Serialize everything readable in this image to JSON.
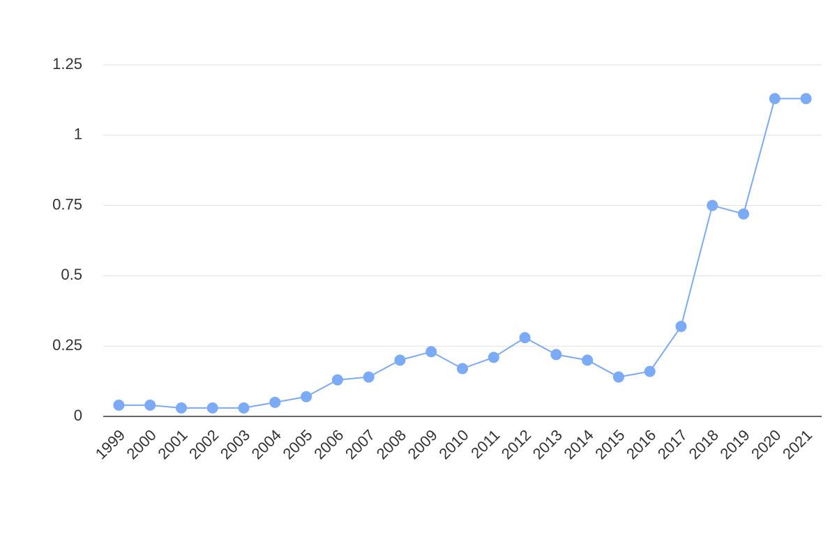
{
  "chart_data": {
    "type": "line",
    "categories": [
      "1999",
      "2000",
      "2001",
      "2002",
      "2003",
      "2004",
      "2005",
      "2006",
      "2007",
      "2008",
      "2009",
      "2010",
      "2011",
      "2012",
      "2013",
      "2014",
      "2015",
      "2016",
      "2017",
      "2018",
      "2019",
      "2020",
      "2021"
    ],
    "values": [
      0.04,
      0.04,
      0.03,
      0.03,
      0.03,
      0.05,
      0.07,
      0.13,
      0.14,
      0.2,
      0.23,
      0.17,
      0.21,
      0.28,
      0.22,
      0.2,
      0.14,
      0.16,
      0.32,
      0.75,
      0.72,
      1.13,
      1.13
    ],
    "color": "#7baaf7",
    "ylim": [
      0,
      1.25
    ],
    "yticks": [
      0,
      0.25,
      0.5,
      0.75,
      1,
      1.25
    ],
    "grid": true
  }
}
